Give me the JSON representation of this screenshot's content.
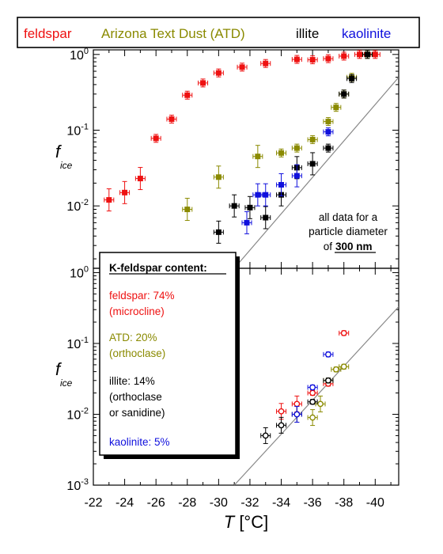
{
  "chart_data": {
    "type": "scatter",
    "legend": [
      {
        "name": "feldspar",
        "color": "#ee1111"
      },
      {
        "name": "Arizona Text Dust (ATD)",
        "color": "#8a8a00"
      },
      {
        "name": "illite",
        "color": "#000000"
      },
      {
        "name": "kaolinite",
        "color": "#1010dd"
      }
    ],
    "xlabel_italic": "T",
    "xlabel_rest": " [°C]",
    "ylabel_main": "f",
    "ylabel_sub": "ice",
    "xlim": [
      -22,
      -41.5
    ],
    "x_scale": "linear (reversed)",
    "x_ticks": [
      "-22",
      "-24",
      "-26",
      "-28",
      "-30",
      "-32",
      "-34",
      "-36",
      "-38",
      "-40"
    ],
    "top_panel": {
      "y_scale": "log",
      "ylim": [
        0.0015,
        1.15
      ],
      "y_ticks": [
        {
          "v": 1,
          "l": "10",
          "e": "0"
        },
        {
          "v": 0.1,
          "l": "10",
          "e": "-1"
        },
        {
          "v": 0.01,
          "l": "10",
          "e": "-2"
        }
      ],
      "annotation": [
        "all data for a",
        "particle diameter",
        "of"
      ],
      "annotation_value": "300 nm",
      "reference_line": {
        "from": [
          -31,
          0.0015
        ],
        "to": [
          -41.5,
          0.5
        ]
      },
      "series": [
        {
          "name": "feldspar",
          "marker": "square",
          "points": [
            [
              -23,
              0.012
            ],
            [
              -24,
              0.015
            ],
            [
              -25,
              0.023
            ],
            [
              -26,
              0.078
            ],
            [
              -27,
              0.14
            ],
            [
              -28,
              0.29
            ],
            [
              -29,
              0.42
            ],
            [
              -30,
              0.57
            ],
            [
              -31.5,
              0.68
            ],
            [
              -33,
              0.76
            ],
            [
              -35,
              0.86
            ],
            [
              -36,
              0.85
            ],
            [
              -37,
              0.88
            ],
            [
              -38,
              0.95
            ],
            [
              -39,
              1.0
            ],
            [
              -40,
              1.0
            ]
          ]
        },
        {
          "name": "Arizona Text Dust (ATD)",
          "marker": "square",
          "points": [
            [
              -28,
              0.009
            ],
            [
              -30,
              0.024
            ],
            [
              -32.5,
              0.045
            ],
            [
              -34,
              0.05
            ],
            [
              -35,
              0.058
            ],
            [
              -36,
              0.075
            ],
            [
              -37,
              0.13
            ],
            [
              -37.5,
              0.2
            ],
            [
              -38,
              0.3
            ],
            [
              -38.5,
              0.5
            ],
            [
              -39.5,
              1.0
            ]
          ]
        },
        {
          "name": "illite",
          "marker": "square",
          "points": [
            [
              -30,
              0.0045
            ],
            [
              -31,
              0.01
            ],
            [
              -32,
              0.0095
            ],
            [
              -33,
              0.007
            ],
            [
              -34,
              0.014
            ],
            [
              -35,
              0.032
            ],
            [
              -36,
              0.036
            ],
            [
              -37,
              0.058
            ],
            [
              -38,
              0.3
            ],
            [
              -38.5,
              0.48
            ],
            [
              -39.5,
              1.0
            ]
          ]
        },
        {
          "name": "kaolinite",
          "marker": "square",
          "points": [
            [
              -31.8,
              0.006
            ],
            [
              -32.5,
              0.014
            ],
            [
              -33,
              0.014
            ],
            [
              -34,
              0.019
            ],
            [
              -35,
              0.025
            ],
            [
              -37,
              0.095
            ]
          ]
        }
      ]
    },
    "bottom_panel": {
      "y_scale": "log",
      "ylim": [
        0.001,
        1.15
      ],
      "y_ticks": [
        {
          "v": 1,
          "l": "10",
          "e": "0"
        },
        {
          "v": 0.1,
          "l": "10",
          "e": "-1"
        },
        {
          "v": 0.01,
          "l": "10",
          "e": "-2"
        },
        {
          "v": 0.001,
          "l": "10",
          "e": "-3"
        }
      ],
      "reference_line": {
        "from": [
          -31,
          0.001
        ],
        "to": [
          -41.5,
          0.33
        ]
      },
      "series": [
        {
          "name": "feldspar",
          "marker": "circle",
          "points": [
            [
              -34,
              0.011
            ],
            [
              -35,
              0.014
            ],
            [
              -36,
              0.02
            ],
            [
              -37,
              0.027
            ],
            [
              -38,
              0.14
            ]
          ]
        },
        {
          "name": "Arizona Text Dust (ATD)",
          "marker": "circle",
          "points": [
            [
              -36,
              0.009
            ],
            [
              -36.5,
              0.014
            ],
            [
              -37,
              0.03
            ],
            [
              -37.5,
              0.043
            ],
            [
              -38,
              0.047
            ]
          ]
        },
        {
          "name": "illite",
          "marker": "circle",
          "points": [
            [
              -33,
              0.005
            ],
            [
              -34,
              0.007
            ],
            [
              -35,
              0.01
            ],
            [
              -36,
              0.015
            ],
            [
              -37,
              0.03
            ]
          ]
        },
        {
          "name": "kaolinite",
          "marker": "circle",
          "points": [
            [
              -35,
              0.01
            ],
            [
              -36,
              0.024
            ],
            [
              -37,
              0.07
            ]
          ]
        }
      ]
    },
    "kfeldspar_box": {
      "title": "K-feldspar content:",
      "entries": [
        {
          "color": "#ee1111",
          "lines": [
            "feldspar: 74%",
            "(microcline)"
          ]
        },
        {
          "color": "#8a8a00",
          "lines": [
            "ATD: 20%",
            "(orthoclase)"
          ]
        },
        {
          "color": "#000000",
          "lines": [
            "illite: 14%",
            "(orthoclase",
            "or sanidine)"
          ]
        },
        {
          "color": "#1010dd",
          "lines": [
            "kaolinite: 5%"
          ]
        }
      ]
    }
  }
}
